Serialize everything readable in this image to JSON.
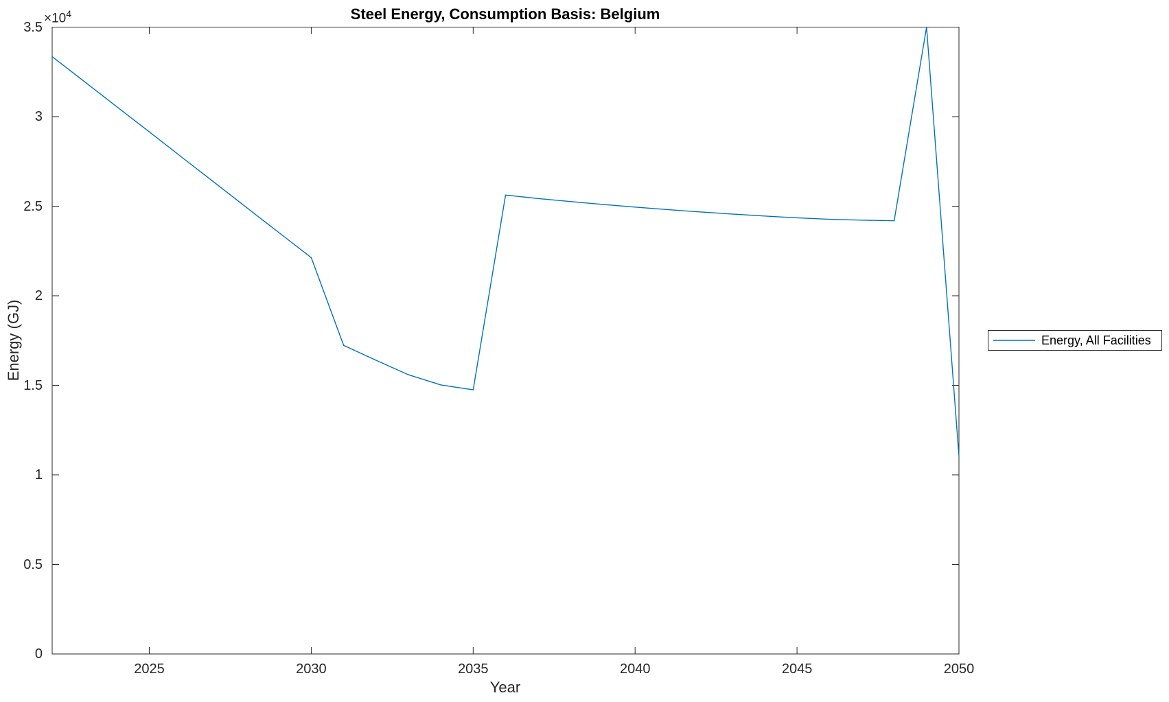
{
  "figure": {
    "background": "#ffffff"
  },
  "chart_data": {
    "type": "line",
    "title": "Steel Energy, Consumption Basis: Belgium",
    "xlabel": "Year",
    "ylabel": "Energy (GJ)",
    "y_offset_text": {
      "base": "×10",
      "exponent": "4"
    },
    "xlim": [
      2022,
      2050
    ],
    "ylim": [
      0,
      35000
    ],
    "grid": false,
    "x_ticks": {
      "values": [
        2025,
        2030,
        2035,
        2040,
        2045,
        2050
      ],
      "labels": [
        "2025",
        "2030",
        "2035",
        "2040",
        "2045",
        "2050"
      ]
    },
    "y_ticks": {
      "values": [
        0,
        5000,
        10000,
        15000,
        20000,
        25000,
        30000,
        35000
      ],
      "labels": [
        "0",
        "0.5",
        "1",
        "1.5",
        "2",
        "2.5",
        "3",
        "3.5"
      ]
    },
    "legend": {
      "position": "right-outside",
      "entries": [
        {
          "label": "Energy, All Facilities",
          "color": "#0072BD"
        }
      ]
    },
    "series": [
      {
        "name": "Energy, All Facilities",
        "color": "#0072BD",
        "x": [
          2022,
          2023,
          2024,
          2025,
          2026,
          2027,
          2028,
          2029,
          2030,
          2031,
          2032,
          2033,
          2034,
          2035,
          2036,
          2037,
          2038,
          2039,
          2040,
          2041,
          2042,
          2043,
          2044,
          2045,
          2046,
          2047,
          2048,
          2049,
          2050
        ],
        "y": [
          33350,
          31950,
          30550,
          29150,
          27740,
          26340,
          24930,
          23530,
          22130,
          17230,
          16400,
          15590,
          15020,
          14750,
          25620,
          25430,
          25260,
          25100,
          24950,
          24810,
          24680,
          24560,
          24450,
          24350,
          24270,
          24220,
          24190,
          35000,
          11030
        ]
      }
    ],
    "colors": {
      "axis": "#262626",
      "tick_label": "#262626",
      "title": "#000000"
    }
  }
}
